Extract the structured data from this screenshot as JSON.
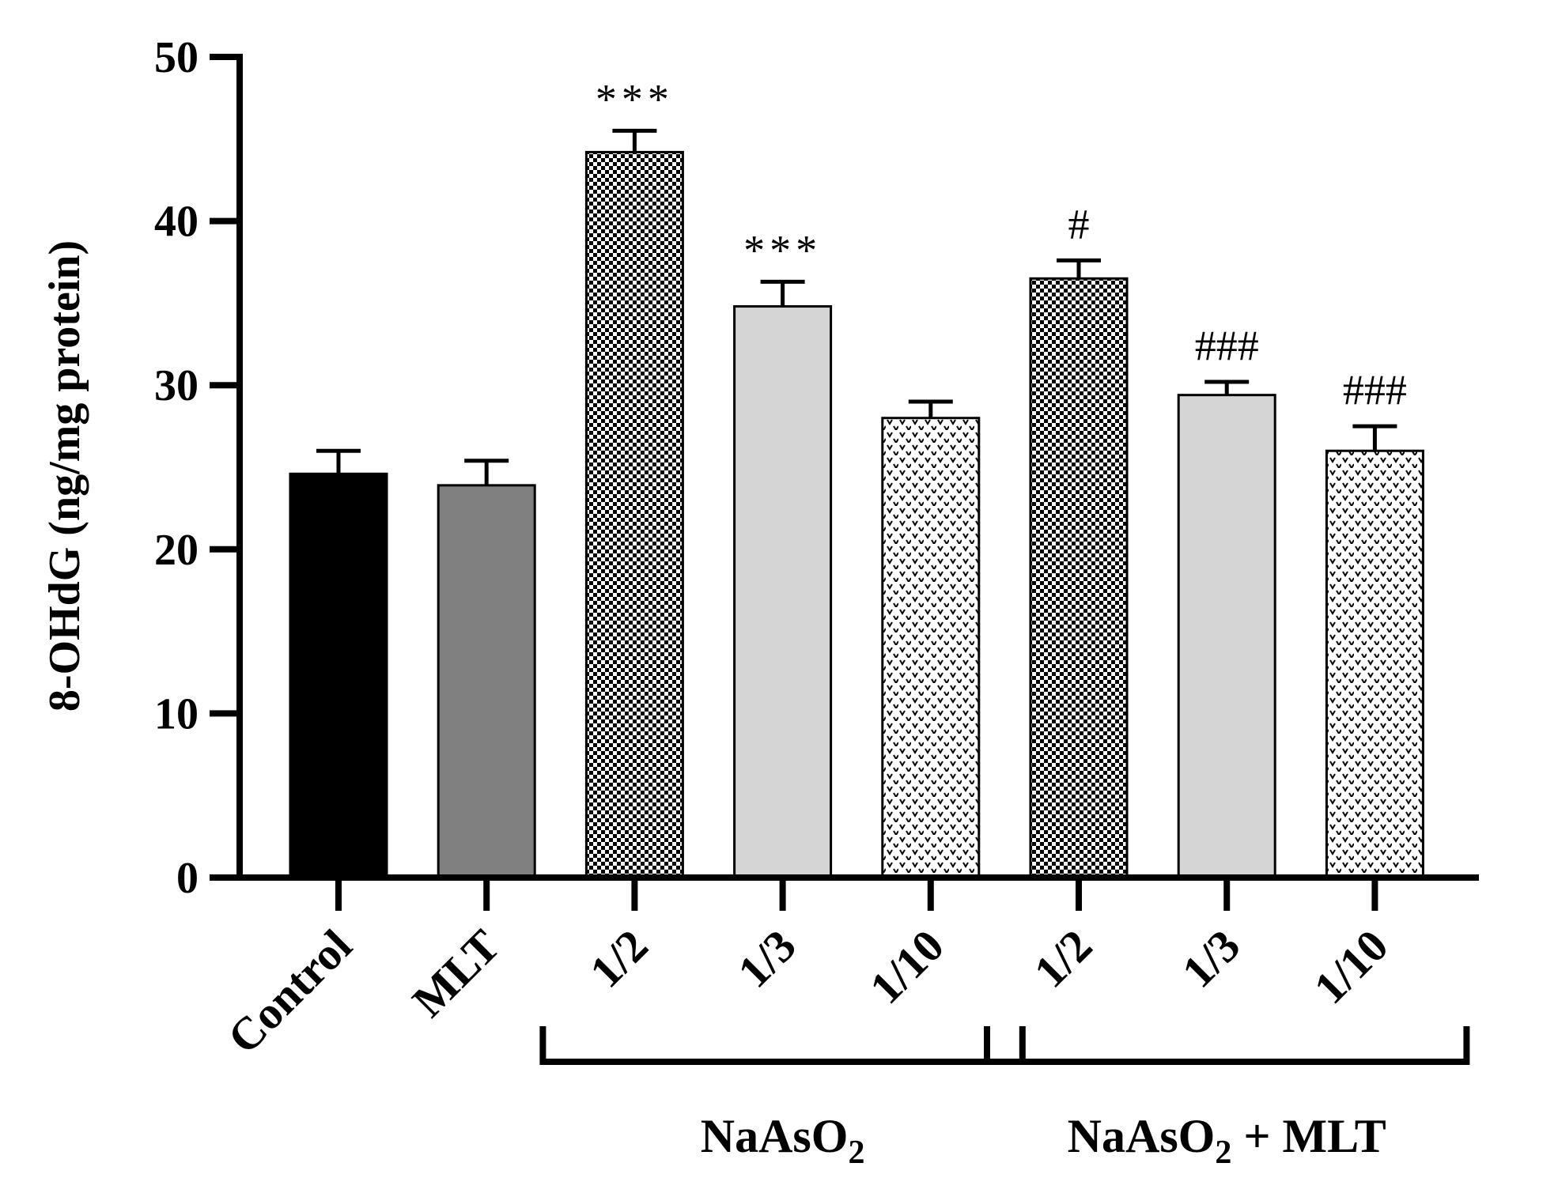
{
  "chart_data": {
    "type": "bar",
    "title": "",
    "xlabel": "",
    "ylabel": "8-OHdG (ng/mg protein)",
    "ylim": [
      0,
      50
    ],
    "yticks": [
      0,
      10,
      20,
      30,
      40,
      50
    ],
    "grid": false,
    "categories": [
      "Control",
      "MLT",
      "1/2",
      "1/3",
      "1/10",
      "1/2",
      "1/3",
      "1/10"
    ],
    "values": [
      24.6,
      23.9,
      44.2,
      34.8,
      28.0,
      36.5,
      29.4,
      26.0
    ],
    "errors": [
      1.4,
      1.5,
      1.3,
      1.5,
      1.0,
      1.1,
      0.8,
      1.5
    ],
    "annotations": [
      "",
      "",
      "***",
      "***",
      "",
      "#",
      "###",
      "###"
    ],
    "fills": [
      "solid-black",
      "solid-gray",
      "checker-dark",
      "solid-light",
      "dots",
      "checker-dark",
      "solid-light",
      "dots"
    ],
    "groups": [
      {
        "base": "NaAsO",
        "sub": "2",
        "suffix": "",
        "from": 2,
        "to": 4
      },
      {
        "base": "NaAsO",
        "sub": "2",
        "suffix": " + MLT",
        "from": 5,
        "to": 7
      }
    ]
  },
  "colors": {
    "axis": "#000000",
    "black": "#000000",
    "gray": "#808080",
    "light": "#d4d5d4",
    "white": "#ffffff"
  }
}
